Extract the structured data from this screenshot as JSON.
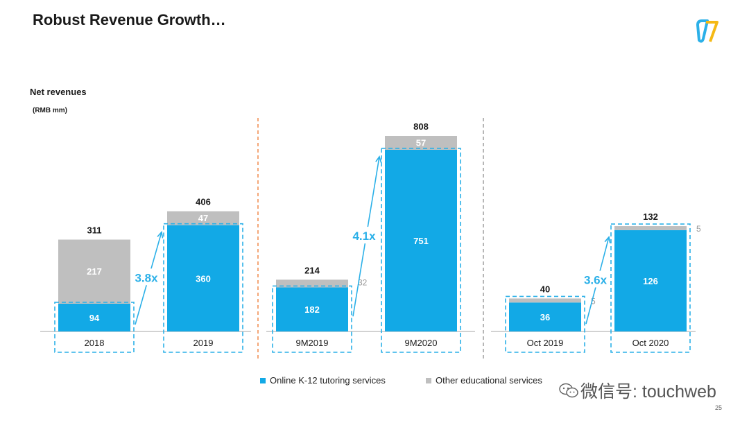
{
  "page": {
    "title": "Robust Revenue Growth…",
    "page_number": "25"
  },
  "watermark": {
    "text": "微信号: touchweb"
  },
  "colors": {
    "online": "#12a9e6",
    "other": "#bfbfbf",
    "growth": "#2bb0e8",
    "divider_orange": "#f08a4b",
    "divider_grey": "#9e9e9e"
  },
  "chart_data": {
    "type": "bar",
    "stacked": true,
    "title": "Net revenues",
    "ylabel": "(RMB mm)",
    "categories": [
      "2018",
      "2019",
      "9M2019",
      "9M2020",
      "Oct 2019",
      "Oct 2020"
    ],
    "groups": [
      [
        "2018",
        "2019"
      ],
      [
        "9M2019",
        "9M2020"
      ],
      [
        "Oct 2019",
        "Oct 2020"
      ]
    ],
    "series": [
      {
        "name": "Online K-12 tutoring services",
        "values": [
          94,
          360,
          182,
          751,
          36,
          126
        ]
      },
      {
        "name": "Other educational services",
        "values": [
          217,
          47,
          32,
          57,
          5,
          5
        ]
      }
    ],
    "totals": [
      311,
      406,
      214,
      808,
      40,
      132
    ],
    "growth_labels": [
      "3.8x",
      "4.1x",
      "3.6x"
    ]
  }
}
